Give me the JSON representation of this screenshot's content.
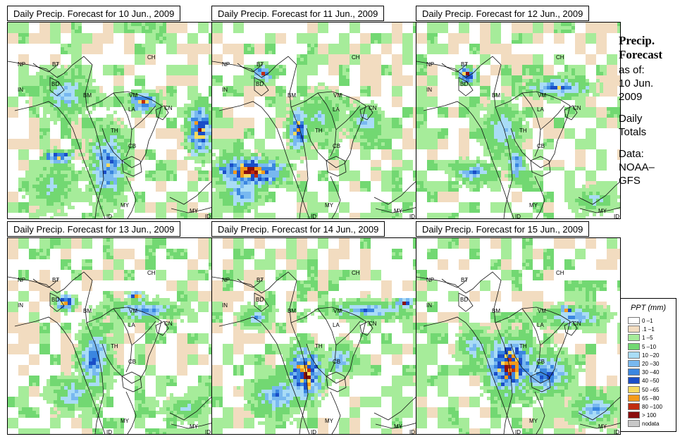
{
  "panels": [
    {
      "title": "Daily Precip. Forecast for  10 Jun., 2009"
    },
    {
      "title": "Daily Precip. Forecast for  11 Jun., 2009"
    },
    {
      "title": "Daily Precip. Forecast for  12 Jun., 2009"
    },
    {
      "title": "Daily Precip. Forecast for  13 Jun., 2009"
    },
    {
      "title": "Daily Precip. Forecast for  14 Jun., 2009"
    },
    {
      "title": "Daily Precip. Forecast for  15 Jun., 2009"
    }
  ],
  "country_labels": [
    "NP",
    "BT",
    "IN",
    "BD",
    "BM",
    "CH",
    "VM",
    "LA",
    "CN",
    "TH",
    "CB",
    "MY",
    "ID"
  ],
  "sidebar": {
    "heading1": "Precip.",
    "heading2": "Forecast",
    "asof": "as of:",
    "date1": "10 Jun.",
    "date2": "2009",
    "daily": "Daily",
    "totals": "Totals",
    "data": "Data:",
    "source1": "NOAA–",
    "source2": "GFS"
  },
  "legend": {
    "title": "PPT (mm)",
    "items": [
      {
        "label": "0 –1",
        "color": "#ffffff"
      },
      {
        "label": ".1 –1",
        "color": "#f2dcc0"
      },
      {
        "label": "1 –5",
        "color": "#a6ec9a"
      },
      {
        "label": "5 –10",
        "color": "#72d872"
      },
      {
        "label": "10 –20",
        "color": "#a9dcf6"
      },
      {
        "label": "20 –30",
        "color": "#78b8f0"
      },
      {
        "label": "30 –40",
        "color": "#3a86e0"
      },
      {
        "label": "40 –50",
        "color": "#1a4ec8"
      },
      {
        "label": "50 –65",
        "color": "#f6da60"
      },
      {
        "label": "65 –80",
        "color": "#f49a1a"
      },
      {
        "label": "80 –100",
        "color": "#c02c10"
      },
      {
        "label": "> 100",
        "color": "#8a0e0e"
      },
      {
        "label": "nodata",
        "color": "#c8c8c8"
      }
    ]
  }
}
